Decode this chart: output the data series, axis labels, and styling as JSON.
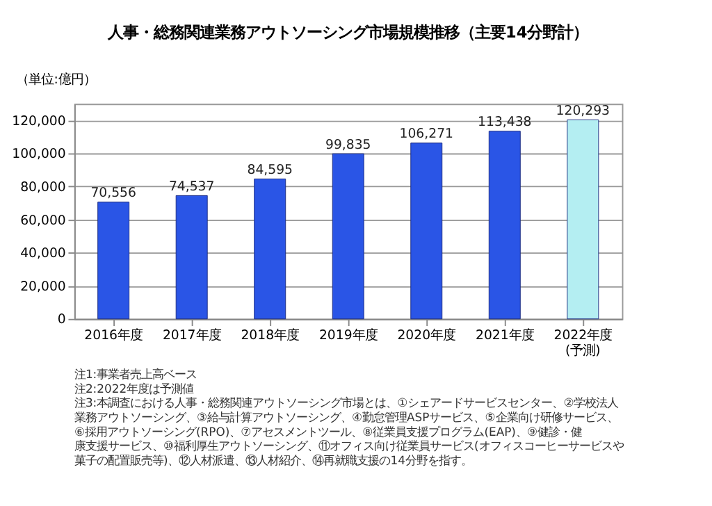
{
  "chart_data": {
    "type": "bar",
    "title": "人事・総務関連業務アウトソーシング市場規模推移（主要14分野計）",
    "ylabel": "（単位:億円）",
    "categories": [
      "2016年度",
      "2017年度",
      "2018年度",
      "2019年度",
      "2020年度",
      "2021年度",
      "2022年度\n(予測)"
    ],
    "values": [
      70556,
      74537,
      84595,
      99835,
      106271,
      113438,
      120293
    ],
    "colors": [
      "#2a55e6",
      "#2a55e6",
      "#2a55e6",
      "#2a55e6",
      "#2a55e6",
      "#2a55e6",
      "#b4eef2"
    ],
    "value_labels": [
      "70,556",
      "74,537",
      "84,595",
      "99,835",
      "106,271",
      "113,438",
      "120,293"
    ],
    "grid": "y",
    "ylim": [
      0,
      130000
    ],
    "yticks": [
      0,
      {
        "value": 20000,
        "label": "20,000"
      },
      {
        "value": 40000,
        "label": "40,000"
      },
      {
        "value": 60000,
        "label": "60,000"
      },
      {
        "value": 80000,
        "label": "80,000"
      },
      {
        "value": 100000,
        "label": "100,000"
      },
      {
        "value": 120000,
        "label": "120,000"
      }
    ],
    "annotations": [
      "注1:事業者売上高ベース",
      "注2:2022年度は予測値",
      "注3:本調査における人事・総務関連アウトソーシング市場とは、①シェアードサービスセンター、②学校法人業務アウトソーシング、③給与計算アウトソーシング、④勤怠管理ASPサービス、⑤企業向け研修サービス、⑥採用アウトソーシング(RPO)、⑦アセスメントツール、⑧従業員支援プログラム(EAP)、⑨健診・健康支援サービス、⑩福利厚生アウトソーシング、⑪オフィス向け従業員サービス(オフィスコーヒーサービスや菓子の配置販売等)、⑫人材派遣、⑬人材紹介、⑭再就職支援の14分野を指す。"
    ]
  }
}
